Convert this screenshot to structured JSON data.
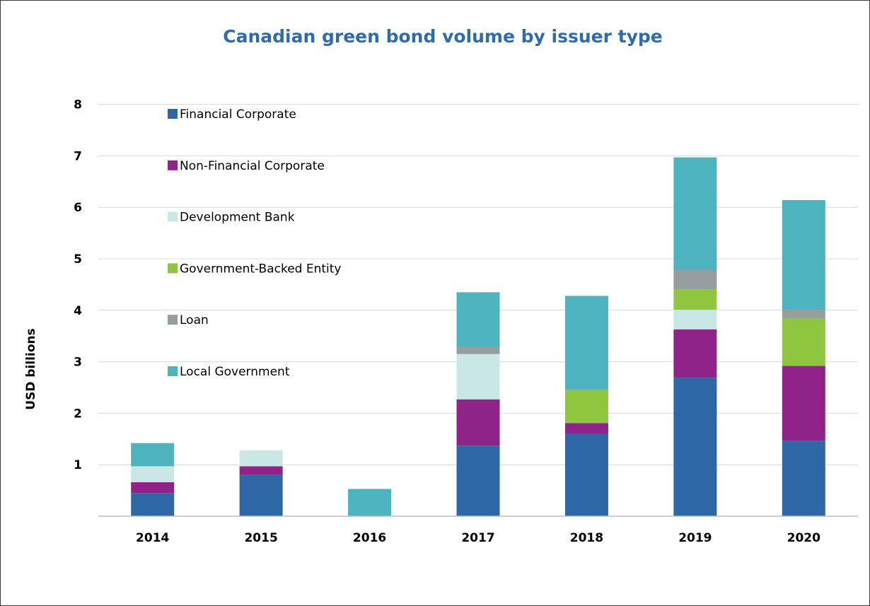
{
  "chart_data": {
    "type": "bar",
    "stacked": true,
    "title": "Canadian green bond volume by issuer type",
    "ylabel": "USD billions",
    "xlabel": "",
    "ylim": [
      0,
      8
    ],
    "yticks": [
      "1",
      "2",
      "3",
      "4",
      "5",
      "6",
      "7",
      "8"
    ],
    "grid": true,
    "legend_position": "top-left",
    "categories": [
      "2014",
      "2015",
      "2016",
      "2017",
      "2018",
      "2019",
      "2020"
    ],
    "series": [
      {
        "name": "Financial Corporate",
        "color": "#2e67a6",
        "values": [
          0.45,
          0.8,
          0,
          1.37,
          1.6,
          2.69,
          1.46
        ]
      },
      {
        "name": "Non-Financial Corporate",
        "color": "#8f2389",
        "values": [
          0.21,
          0.17,
          0,
          0.9,
          0.21,
          0.94,
          1.46
        ]
      },
      {
        "name": "Development Bank",
        "color": "#c8e7e5",
        "values": [
          0.31,
          0.31,
          0,
          0.88,
          0,
          0.38,
          0
        ]
      },
      {
        "name": "Government-Backed Entity",
        "color": "#8ec63f",
        "values": [
          0,
          0,
          0,
          0,
          0.65,
          0.4,
          0.92
        ]
      },
      {
        "name": "Loan",
        "color": "#969d9d",
        "values": [
          0,
          0,
          0,
          0.14,
          0,
          0.37,
          0.17
        ]
      },
      {
        "name": "Local Government",
        "color": "#4db3bf",
        "values": [
          0.45,
          0,
          0.53,
          1.06,
          1.82,
          2.19,
          2.13
        ]
      }
    ]
  }
}
